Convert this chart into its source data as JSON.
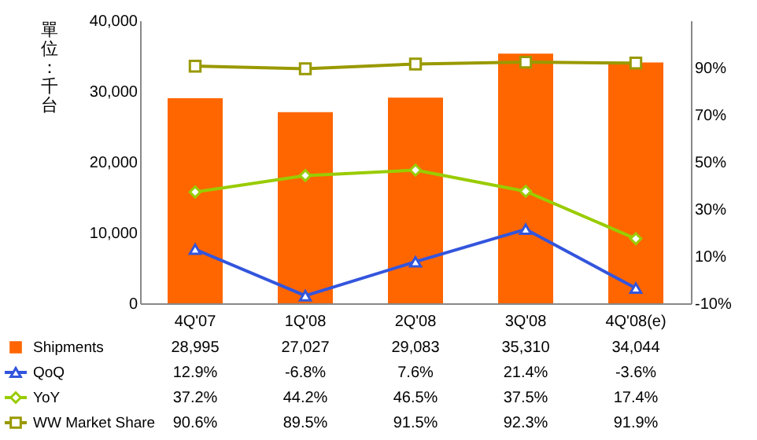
{
  "chart_data": {
    "type": "bar",
    "ylabel": "單位：千台",
    "categories": [
      "4Q'07",
      "1Q'08",
      "2Q'08",
      "3Q'08",
      "4Q'08(e)"
    ],
    "ylim": [
      0,
      40000
    ],
    "yticks": [
      0,
      {
        "value": 10000,
        "label": "10,000"
      },
      {
        "value": 20000,
        "label": "20,000"
      },
      {
        "value": 30000,
        "label": "30,000"
      },
      {
        "value": 40000,
        "label": "40,000"
      }
    ],
    "legend": "bottom left",
    "y2lim": [
      -10,
      110
    ],
    "y2ticks": [
      {
        "value": -10,
        "label": "-10%"
      },
      {
        "value": 10,
        "label": "10%"
      },
      {
        "value": 30,
        "label": "30%"
      },
      {
        "value": 50,
        "label": "50%"
      },
      {
        "value": 70,
        "label": "70%"
      },
      {
        "value": 90,
        "label": "90%"
      }
    ],
    "series": [
      {
        "name": "Shipments",
        "type": "bar",
        "color": "#ff6600",
        "values": [
          28995,
          27027,
          29083,
          35310,
          34044
        ],
        "value_labels": [
          "28,995",
          "27,027",
          "29,083",
          "35,310",
          "34,044"
        ]
      },
      {
        "name": "QoQ",
        "type": "line",
        "axis": "y2",
        "marker": "triangle",
        "color": "#3355dd",
        "values": [
          12.9,
          -6.8,
          7.6,
          21.4,
          -3.6
        ],
        "value_labels": [
          "12.9%",
          "-6.8%",
          "7.6%",
          "21.4%",
          "-3.6%"
        ]
      },
      {
        "name": "YoY",
        "type": "line",
        "axis": "y2",
        "marker": "diamond",
        "color": "#99cc00",
        "values": [
          37.2,
          44.2,
          46.5,
          37.5,
          17.4
        ],
        "value_labels": [
          "37.2%",
          "44.2%",
          "46.5%",
          "37.5%",
          "17.4%"
        ]
      },
      {
        "name": "WW Market Share",
        "type": "line",
        "axis": "y2",
        "marker": "square",
        "color": "#999900",
        "values": [
          90.6,
          89.5,
          91.5,
          92.3,
          91.9
        ],
        "value_labels": [
          "90.6%",
          "89.5%",
          "91.5%",
          "92.3%",
          "91.9%"
        ]
      }
    ]
  }
}
